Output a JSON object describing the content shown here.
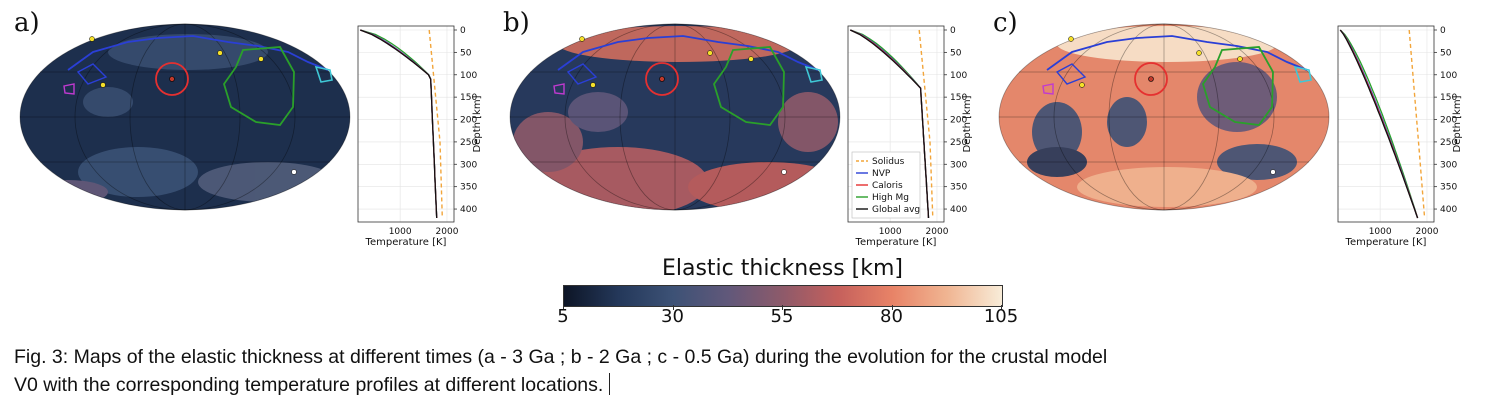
{
  "panels": [
    {
      "letter": "a)",
      "scale": "dark"
    },
    {
      "letter": "b)",
      "scale": "mid"
    },
    {
      "letter": "c)",
      "scale": "warm"
    }
  ],
  "profile_axes": {
    "xlabel": "Temperature [K]",
    "ylabel": "Depth [km]",
    "xticks": [
      "1000",
      "2000"
    ],
    "yticks": [
      "0",
      "50",
      "100",
      "150",
      "200",
      "250",
      "300",
      "350",
      "400"
    ]
  },
  "legend": {
    "entries": [
      {
        "label": "Solidus",
        "color": "#f2a53a",
        "dash": true
      },
      {
        "label": "NVP",
        "color": "#2a3fd6",
        "dash": false
      },
      {
        "label": "Caloris",
        "color": "#e53030",
        "dash": false
      },
      {
        "label": "High Mg",
        "color": "#2aa02a",
        "dash": false
      },
      {
        "label": "Global avg",
        "color": "#111111",
        "dash": false
      }
    ]
  },
  "colorbar": {
    "title": "Elastic thickness [km]",
    "ticks": [
      "5",
      "30",
      "55",
      "80",
      "105"
    ],
    "range": [
      5,
      105
    ],
    "colors": [
      "#0d1526",
      "#24385a",
      "#3d5276",
      "#61587a",
      "#8e5a6a",
      "#c5605c",
      "#e88367",
      "#f0b592",
      "#f8ecd8"
    ]
  },
  "caption": {
    "line1": "Fig. 3: Maps of the elastic thickness at different times (a - 3 Ga ; b - 2 Ga ; c - 0.5 Ga) during the evolution for the crustal model",
    "line2": "V0 with the corresponding temperature profiles at different locations."
  }
}
